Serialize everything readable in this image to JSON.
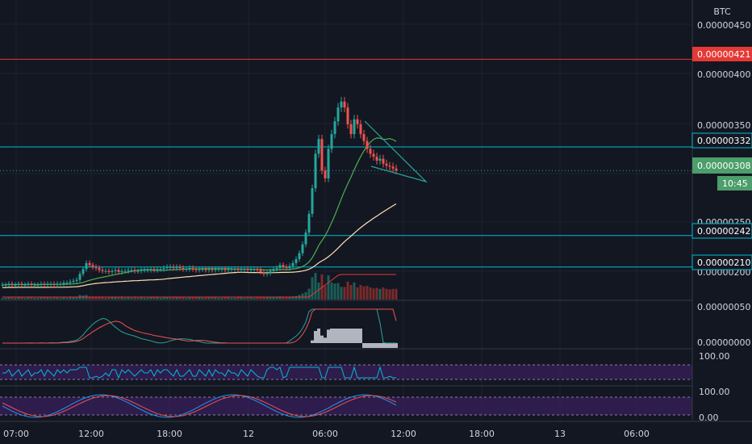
{
  "currency": "BTC",
  "colors": {
    "background": "#131722",
    "grid": "#1e2230",
    "up": "#26a69a",
    "down": "#ef5350",
    "red_line": "#e53935",
    "cyan_line": "#00bcd4",
    "ma_green": "#4caf50",
    "ma_orange": "#ffe0b2",
    "ma_red": "#e53935",
    "rsi_band": "#3b1f5e",
    "stoch_band": "#3b1f5e",
    "macd_hist": "#b2b5be",
    "triangle": "#26a69a"
  },
  "price_axis": {
    "ticks": [
      "0.00000450",
      "0.00000400",
      "0.00000350",
      "0.00000250",
      "0.00000200"
    ],
    "labels": [
      {
        "text": "0.00000421",
        "color": "red"
      },
      {
        "text": "0.00000332",
        "color": "cyan"
      },
      {
        "text": "0.00000308",
        "color": "green"
      },
      {
        "text": "10:45",
        "color": "green"
      },
      {
        "text": "0.00000242",
        "color": "cyan"
      },
      {
        "text": "0.00000210",
        "color": "cyan"
      }
    ]
  },
  "macd_axis": {
    "ticks": [
      "0.00000050",
      "0.00000000"
    ]
  },
  "rsi_axis": {
    "ticks": [
      "100.00"
    ]
  },
  "stoch_axis": {
    "ticks": [
      "100.00",
      "0.00"
    ]
  },
  "time_axis": {
    "ticks": [
      "07:00",
      "12:00",
      "18:00",
      "12",
      "06:00",
      "12:00",
      "18:00",
      "13",
      "06:00"
    ]
  },
  "chart_data": {
    "type": "candlestick",
    "y_unit": "BTC",
    "ylim": [
      1.8e-06,
      4.8e-06
    ],
    "horizontal_lines": [
      {
        "value": 4.21e-06,
        "color": "red"
      },
      {
        "value": 3.32e-06,
        "color": "cyan"
      },
      {
        "value": 2.42e-06,
        "color": "cyan"
      },
      {
        "value": 2.1e-06,
        "color": "cyan"
      },
      {
        "value": 3.08e-06,
        "color": "green-dotted"
      }
    ],
    "last_price": 3.08e-06,
    "countdown": "10:45",
    "candles_close": [
      1.92e-06,
      1.92e-06,
      1.93e-06,
      1.92e-06,
      1.92e-06,
      1.93e-06,
      1.92e-06,
      1.92e-06,
      1.93e-06,
      1.92e-06,
      1.92e-06,
      1.92e-06,
      1.93e-06,
      1.92e-06,
      1.93e-06,
      1.93e-06,
      1.92e-06,
      1.93e-06,
      1.93e-06,
      1.94e-06,
      1.94e-06,
      1.95e-06,
      1.96e-06,
      1.97e-06,
      2.03e-06,
      2.08e-06,
      2.14e-06,
      2.12e-06,
      2.1e-06,
      2.09e-06,
      2.07e-06,
      2.06e-06,
      2.06e-06,
      2.05e-06,
      2.06e-06,
      2.07e-06,
      2.05e-06,
      2.06e-06,
      2.06e-06,
      2.07e-06,
      2.07e-06,
      2.06e-06,
      2.06e-06,
      2.07e-06,
      2.07e-06,
      2.07e-06,
      2.08e-06,
      2.07e-06,
      2.08e-06,
      2.08e-06,
      2.09e-06,
      2.1e-06,
      2.1e-06,
      2.09e-06,
      2.1e-06,
      2.09e-06,
      2.08e-06,
      2.08e-06,
      2.09e-06,
      2.08e-06,
      2.07e-06,
      2.08e-06,
      2.08e-06,
      2.07e-06,
      2.08e-06,
      2.07e-06,
      2.08e-06,
      2.08e-06,
      2.08e-06,
      2.07e-06,
      2.08e-06,
      2.08e-06,
      2.08e-06,
      2.07e-06,
      2.08e-06,
      2.08e-06,
      2.07e-06,
      2.08e-06,
      2.08e-06,
      2.07e-06,
      2.05e-06,
      2.03e-06,
      2.04e-06,
      2.06e-06,
      2.08e-06,
      2.09e-06,
      2.12e-06,
      2.1e-06,
      2.09e-06,
      2.11e-06,
      2.14e-06,
      2.18e-06,
      2.24e-06,
      2.33e-06,
      2.45e-06,
      2.64e-06,
      2.9e-06,
      3.25e-06,
      3.4e-06,
      3.08e-06,
      3e-06,
      3.3e-06,
      3.45e-06,
      3.58e-06,
      3.72e-06,
      3.78e-06,
      3.72e-06,
      3.55e-06,
      3.45e-06,
      3.6e-06,
      3.55e-06,
      3.45e-06,
      3.38e-06,
      3.3e-06,
      3.25e-06,
      3.22e-06,
      3.18e-06,
      3.2e-06,
      3.15e-06,
      3.13e-06,
      3.12e-06,
      3.1e-06,
      3.08e-06
    ],
    "moving_averages": [
      {
        "name": "MA green",
        "color": "green"
      },
      {
        "name": "MA orange",
        "color": "orange"
      },
      {
        "name": "MA red",
        "color": "red"
      }
    ],
    "pattern": "falling wedge",
    "indicators": [
      "volume",
      "MACD",
      "RSI",
      "Stochastic RSI"
    ]
  }
}
